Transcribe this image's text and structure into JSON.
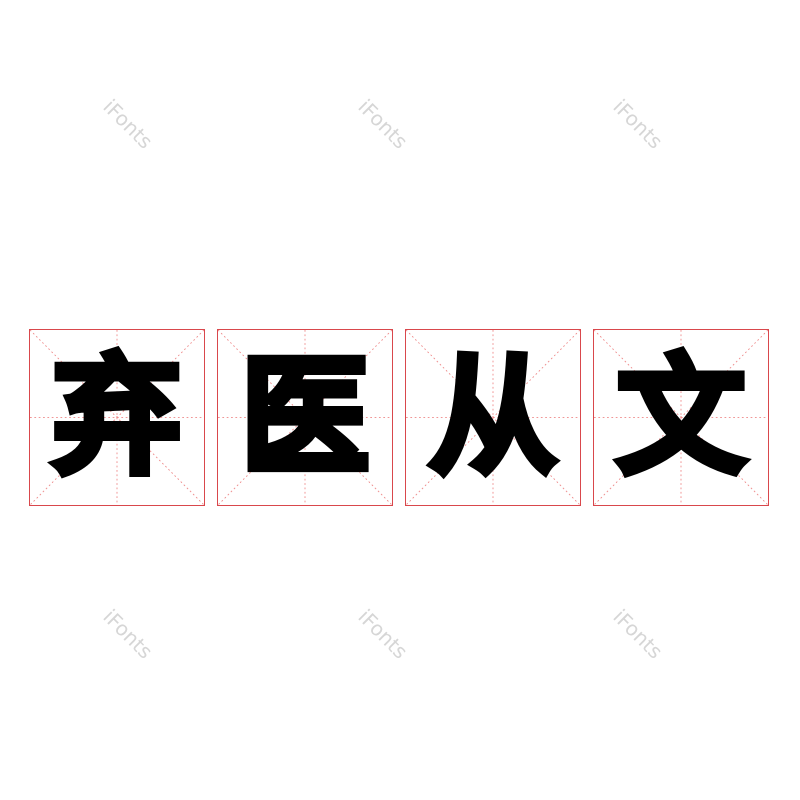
{
  "watermark": "iFonts",
  "characters": [
    "弃",
    "医",
    "从",
    "文"
  ],
  "colors": {
    "grid": "#d9474c",
    "ink": "#000000",
    "watermark": "#d6d6d6"
  }
}
